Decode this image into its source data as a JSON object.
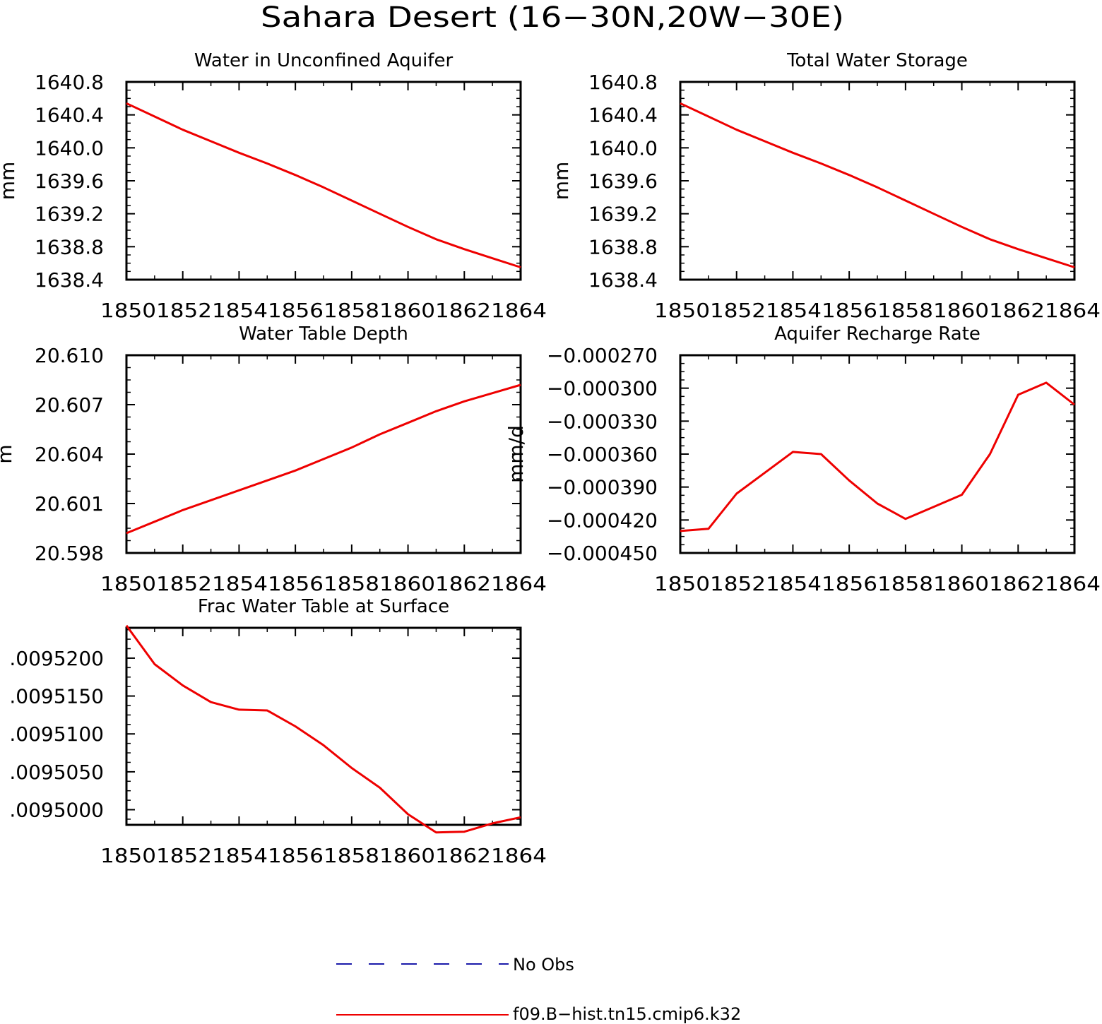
{
  "figure": {
    "title": "Sahara Desert (16−30N,20W−30E)"
  },
  "legend": {
    "items": [
      {
        "label": "No Obs",
        "color": "#1a1aaa",
        "style": "dashed"
      },
      {
        "label": "f09.B−hist.tn15.cmip6.k32",
        "color": "#ee0000",
        "style": "solid"
      }
    ]
  },
  "chart_data": [
    {
      "type": "line",
      "title": "Water in Unconfined Aquifer",
      "ylabel": "mm",
      "xlabel": "",
      "xlim": [
        1850,
        1864
      ],
      "ylim": [
        1638.4,
        1640.8
      ],
      "xticks": [
        "1850",
        "1852",
        "1854",
        "1856",
        "1858",
        "1860",
        "1862",
        "1864"
      ],
      "yticks": [
        "1638.4",
        "1638.8",
        "1639.2",
        "1639.6",
        "1640.0",
        "1640.4",
        "1640.8"
      ],
      "series": [
        {
          "name": "f09.B−hist.tn15.cmip6.k32",
          "color": "#ee0000",
          "x": [
            1850,
            1851,
            1852,
            1853,
            1854,
            1855,
            1856,
            1857,
            1858,
            1859,
            1860,
            1861,
            1862,
            1863,
            1864
          ],
          "y": [
            1640.54,
            1640.38,
            1640.22,
            1640.08,
            1639.94,
            1639.81,
            1639.67,
            1639.52,
            1639.36,
            1639.2,
            1639.04,
            1638.89,
            1638.77,
            1638.66,
            1638.55
          ]
        }
      ]
    },
    {
      "type": "line",
      "title": "Total Water Storage",
      "ylabel": "mm",
      "xlabel": "",
      "xlim": [
        1850,
        1864
      ],
      "ylim": [
        1638.4,
        1640.8
      ],
      "xticks": [
        "1850",
        "1852",
        "1854",
        "1856",
        "1858",
        "1860",
        "1862",
        "1864"
      ],
      "yticks": [
        "1638.4",
        "1638.8",
        "1639.2",
        "1639.6",
        "1640.0",
        "1640.4",
        "1640.8"
      ],
      "series": [
        {
          "name": "f09.B−hist.tn15.cmip6.k32",
          "color": "#ee0000",
          "x": [
            1850,
            1851,
            1852,
            1853,
            1854,
            1855,
            1856,
            1857,
            1858,
            1859,
            1860,
            1861,
            1862,
            1863,
            1864
          ],
          "y": [
            1640.54,
            1640.38,
            1640.22,
            1640.08,
            1639.94,
            1639.81,
            1639.67,
            1639.52,
            1639.36,
            1639.2,
            1639.04,
            1638.89,
            1638.77,
            1638.66,
            1638.55
          ]
        }
      ]
    },
    {
      "type": "line",
      "title": "Water Table Depth",
      "ylabel": "m",
      "xlabel": "",
      "xlim": [
        1850,
        1864
      ],
      "ylim": [
        20.598,
        20.61
      ],
      "xticks": [
        "1850",
        "1852",
        "1854",
        "1856",
        "1858",
        "1860",
        "1862",
        "1864"
      ],
      "yticks": [
        "20.598",
        "20.601",
        "20.604",
        "20.607",
        "20.610"
      ],
      "series": [
        {
          "name": "f09.B−hist.tn15.cmip6.k32",
          "color": "#ee0000",
          "x": [
            1850,
            1851,
            1852,
            1853,
            1854,
            1855,
            1856,
            1857,
            1858,
            1859,
            1860,
            1861,
            1862,
            1863,
            1864
          ],
          "y": [
            20.5992,
            20.5999,
            20.6006,
            20.6012,
            20.6018,
            20.6024,
            20.603,
            20.6037,
            20.6044,
            20.6052,
            20.6059,
            20.6066,
            20.6072,
            20.6077,
            20.6082
          ]
        }
      ]
    },
    {
      "type": "line",
      "title": "Aquifer Recharge Rate",
      "ylabel": "mm/d",
      "xlabel": "",
      "xlim": [
        1850,
        1864
      ],
      "ylim": [
        -0.00045,
        -0.00027
      ],
      "xticks": [
        "1850",
        "1852",
        "1854",
        "1856",
        "1858",
        "1860",
        "1862",
        "1864"
      ],
      "yticks": [
        "−0.000450",
        "−0.000420",
        "−0.000390",
        "−0.000360",
        "−0.000330",
        "−0.000300",
        "−0.000270"
      ],
      "series": [
        {
          "name": "f09.B−hist.tn15.cmip6.k32",
          "color": "#ee0000",
          "x": [
            1850,
            1851,
            1852,
            1853,
            1854,
            1855,
            1856,
            1857,
            1858,
            1859,
            1860,
            1861,
            1862,
            1863,
            1864
          ],
          "y": [
            -0.00043,
            -0.000428,
            -0.000396,
            -0.000377,
            -0.000358,
            -0.00036,
            -0.000384,
            -0.000405,
            -0.000419,
            -0.000408,
            -0.000397,
            -0.00036,
            -0.000306,
            -0.000295,
            -0.000315
          ]
        }
      ]
    },
    {
      "type": "line",
      "title": "Frac Water Table at Surface",
      "ylabel": "",
      "xlabel": "",
      "xlim": [
        1850,
        1864
      ],
      "ylim": [
        0.009498,
        0.009524
      ],
      "xticks": [
        "1850",
        "1852",
        "1854",
        "1856",
        "1858",
        "1860",
        "1862",
        "1864"
      ],
      "yticks": [
        ".0095000",
        ".0095050",
        ".0095100",
        ".0095150",
        ".0095200"
      ],
      "series": [
        {
          "name": "f09.B−hist.tn15.cmip6.k32",
          "color": "#ee0000",
          "x": [
            1850,
            1851,
            1852,
            1853,
            1854,
            1855,
            1856,
            1857,
            1858,
            1859,
            1860,
            1861,
            1862,
            1863,
            1864
          ],
          "y": [
            0.0095243,
            0.0095192,
            0.0095164,
            0.0095142,
            0.0095132,
            0.0095131,
            0.009511,
            0.0095085,
            0.0095055,
            0.0095029,
            0.0094994,
            0.009497,
            0.0094971,
            0.0094982,
            0.009499
          ]
        }
      ]
    }
  ]
}
